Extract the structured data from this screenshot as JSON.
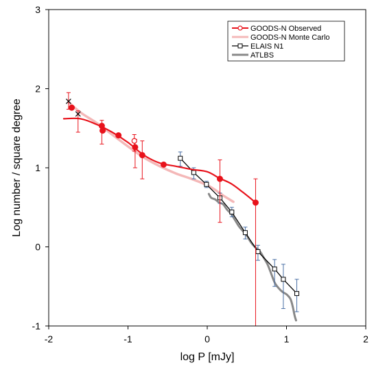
{
  "chart_data": {
    "type": "line",
    "title": "",
    "xlabel": "log P [mJy]",
    "ylabel": "Log number / square degree",
    "xlim": [
      -2,
      2
    ],
    "ylim": [
      -1,
      3
    ],
    "x_ticks": [
      -2,
      -1,
      0,
      1,
      2
    ],
    "x_tick_labels": [
      "-2",
      "-1",
      "0",
      "1",
      "2"
    ],
    "y_ticks": [
      -1,
      0,
      1,
      2,
      3
    ],
    "y_tick_labels": [
      "-1",
      "0",
      "1",
      "2",
      "3"
    ],
    "grid": false,
    "legend_position": "top-right",
    "colors": {
      "goods_observed": "#e8121b",
      "goods_mc": "#f4b8b8",
      "elais": "#000000",
      "atlbs": "#888888",
      "elais_err": "#4a6fa5"
    },
    "series": [
      {
        "name": "GOODS-N Observed",
        "key": "goods_obs",
        "style": "markers-smooth-line",
        "points": [
          {
            "x": -1.75,
            "y": 1.84,
            "lo": 1.74,
            "hi": 1.95,
            "marker": "x"
          },
          {
            "x": -1.71,
            "y": 1.76,
            "marker": "dot"
          },
          {
            "x": -1.63,
            "y": 1.68,
            "lo": 1.45,
            "hi": 1.72,
            "marker": "x"
          },
          {
            "x": -1.33,
            "y": 1.53,
            "lo": 1.3,
            "hi": 1.6,
            "marker": "dot"
          },
          {
            "x": -1.32,
            "y": 1.47,
            "marker": "dot"
          },
          {
            "x": -1.12,
            "y": 1.41,
            "marker": "dot"
          },
          {
            "x": -0.92,
            "y": 1.34,
            "lo": 1.21,
            "hi": 1.42,
            "marker": "open"
          },
          {
            "x": -0.91,
            "y": 1.26,
            "lo": 1.0,
            "hi": 1.36,
            "marker": "dot"
          },
          {
            "x": -0.82,
            "y": 1.16,
            "lo": 0.86,
            "hi": 1.34,
            "marker": "dot"
          },
          {
            "x": -0.55,
            "y": 1.04,
            "marker": "dot"
          },
          {
            "x": 0.16,
            "y": 0.86,
            "lo": 0.31,
            "hi": 1.1,
            "marker": "dot"
          },
          {
            "x": 0.61,
            "y": 0.56,
            "lo": -1.0,
            "hi": 0.86,
            "marker": "dot"
          }
        ],
        "curve": [
          [
            -1.81,
            1.62
          ],
          [
            -1.6,
            1.62
          ],
          [
            -1.4,
            1.55
          ],
          [
            -1.2,
            1.45
          ],
          [
            -1.0,
            1.32
          ],
          [
            -0.8,
            1.16
          ],
          [
            -0.6,
            1.06
          ],
          [
            -0.4,
            1.02
          ],
          [
            -0.2,
            0.98
          ],
          [
            0.0,
            0.95
          ],
          [
            0.15,
            0.87
          ],
          [
            0.3,
            0.8
          ],
          [
            0.45,
            0.69
          ],
          [
            0.61,
            0.56
          ]
        ]
      },
      {
        "name": "GOODS-N Monte Carlo",
        "key": "goods_mc",
        "style": "thick-line",
        "curve": [
          [
            -1.75,
            1.83
          ],
          [
            -1.6,
            1.7
          ],
          [
            -1.4,
            1.57
          ],
          [
            -1.2,
            1.42
          ],
          [
            -1.0,
            1.27
          ],
          [
            -0.8,
            1.13
          ],
          [
            -0.6,
            1.02
          ],
          [
            -0.4,
            0.93
          ],
          [
            -0.2,
            0.86
          ],
          [
            0.0,
            0.78
          ],
          [
            0.1,
            0.72
          ],
          [
            0.2,
            0.65
          ],
          [
            0.33,
            0.57
          ]
        ]
      },
      {
        "name": "ELAIS N1",
        "key": "elais",
        "style": "open-square-line",
        "points": [
          {
            "x": -0.34,
            "y": 1.12,
            "lo": 1.02,
            "hi": 1.2
          },
          {
            "x": -0.17,
            "y": 0.94,
            "lo": 0.86,
            "hi": 1.0
          },
          {
            "x": -0.01,
            "y": 0.79,
            "lo": 0.75,
            "hi": 0.83
          },
          {
            "x": 0.16,
            "y": 0.62,
            "lo": 0.55,
            "hi": 0.68
          },
          {
            "x": 0.31,
            "y": 0.44,
            "lo": 0.38,
            "hi": 0.5
          },
          {
            "x": 0.48,
            "y": 0.18,
            "lo": 0.1,
            "hi": 0.25
          },
          {
            "x": 0.64,
            "y": -0.06,
            "lo": -0.17,
            "hi": 0.02
          },
          {
            "x": 0.85,
            "y": -0.28,
            "lo": -0.5,
            "hi": -0.16
          },
          {
            "x": 0.96,
            "y": -0.41,
            "lo": -0.78,
            "hi": -0.22
          },
          {
            "x": 1.13,
            "y": -0.59,
            "lo": -0.82,
            "hi": -0.41
          }
        ]
      },
      {
        "name": "ATLBS",
        "key": "atlbs",
        "style": "thick-line",
        "curve": [
          [
            0.02,
            0.67
          ],
          [
            0.05,
            0.62
          ],
          [
            0.1,
            0.6
          ],
          [
            0.15,
            0.56
          ],
          [
            0.2,
            0.54
          ],
          [
            0.25,
            0.47
          ],
          [
            0.3,
            0.42
          ],
          [
            0.35,
            0.34
          ],
          [
            0.4,
            0.26
          ],
          [
            0.45,
            0.2
          ],
          [
            0.5,
            0.14
          ],
          [
            0.55,
            0.06
          ],
          [
            0.6,
            0.0
          ],
          [
            0.65,
            -0.04
          ],
          [
            0.68,
            -0.08
          ],
          [
            0.72,
            -0.15
          ],
          [
            0.76,
            -0.22
          ],
          [
            0.8,
            -0.32
          ],
          [
            0.85,
            -0.45
          ],
          [
            0.9,
            -0.52
          ],
          [
            0.95,
            -0.57
          ],
          [
            1.0,
            -0.6
          ],
          [
            1.05,
            -0.66
          ],
          [
            1.08,
            -0.76
          ],
          [
            1.1,
            -0.86
          ],
          [
            1.12,
            -0.93
          ]
        ]
      }
    ]
  }
}
